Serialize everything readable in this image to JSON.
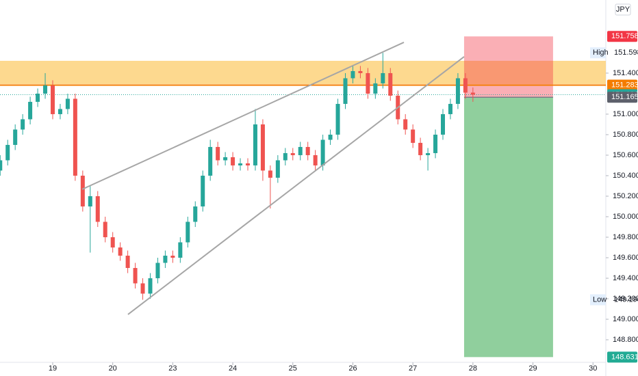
{
  "chart_data": {
    "type": "candlestick",
    "currency": "JPY",
    "up_color": "#26a69a",
    "down_color": "#ef5350",
    "xlim": [
      -0.878,
      9.214
    ],
    "ylim": [
      148.58,
      152.113
    ],
    "xticks": [
      {
        "value": 0,
        "label": "19"
      },
      {
        "value": 1,
        "label": "20"
      },
      {
        "value": 2,
        "label": "23"
      },
      {
        "value": 3,
        "label": "24"
      },
      {
        "value": 4,
        "label": "25"
      },
      {
        "value": 5,
        "label": "26"
      },
      {
        "value": 6,
        "label": "27"
      },
      {
        "value": 7,
        "label": "28"
      },
      {
        "value": 8,
        "label": "29"
      },
      {
        "value": 9,
        "label": "30"
      }
    ],
    "yticks": [
      {
        "value": 148.8,
        "label": "148.800"
      },
      {
        "value": 149,
        "label": "149.000"
      },
      {
        "value": 149.2,
        "label": "149.200"
      },
      {
        "value": 149.4,
        "label": "149.400"
      },
      {
        "value": 149.6,
        "label": "149.600"
      },
      {
        "value": 149.8,
        "label": "149.800"
      },
      {
        "value": 150,
        "label": "150.000"
      },
      {
        "value": 150.2,
        "label": "150.200"
      },
      {
        "value": 150.4,
        "label": "150.400"
      },
      {
        "value": 150.6,
        "label": "150.600"
      },
      {
        "value": 150.8,
        "label": "150.800"
      },
      {
        "value": 151,
        "label": "151.000"
      },
      {
        "value": 151.4,
        "label": "151.400"
      }
    ],
    "x": [
      -0.875,
      -0.75,
      -0.625,
      -0.5,
      -0.375,
      -0.25,
      -0.125,
      0,
      0.125,
      0.25,
      0.375,
      0.5,
      0.625,
      0.75,
      0.875,
      1,
      1.125,
      1.25,
      1.375,
      1.5,
      1.625,
      1.75,
      1.875,
      2,
      2.125,
      2.25,
      2.375,
      2.5,
      2.625,
      2.75,
      2.875,
      3,
      3.125,
      3.25,
      3.375,
      3.5,
      3.625,
      3.75,
      3.875,
      4,
      4.125,
      4.25,
      4.375,
      4.5,
      4.625,
      4.75,
      4.875,
      5,
      5.125,
      5.25,
      5.375,
      5.5,
      5.625,
      5.75,
      5.875,
      6,
      6.125,
      6.25,
      6.375,
      6.5,
      6.625,
      6.75,
      6.875,
      7
    ],
    "open": [
      150.45,
      150.55,
      150.7,
      150.85,
      150.95,
      151.12,
      151.2,
      151.28,
      151.0,
      151.05,
      151.15,
      150.4,
      150.1,
      150.2,
      149.95,
      149.8,
      149.7,
      149.62,
      149.5,
      149.35,
      149.25,
      149.4,
      149.55,
      149.62,
      149.6,
      149.75,
      149.95,
      150.1,
      150.4,
      150.68,
      150.55,
      150.58,
      150.5,
      150.52,
      150.5,
      150.9,
      150.45,
      150.38,
      150.55,
      150.62,
      150.6,
      150.68,
      150.6,
      150.5,
      150.75,
      150.8,
      151.1,
      151.35,
      151.42,
      151.4,
      151.2,
      151.3,
      151.4,
      151.18,
      150.95,
      150.85,
      150.72,
      150.6,
      150.62,
      150.8,
      151.0,
      151.1,
      151.35,
      151.21
    ],
    "high": [
      150.6,
      150.75,
      150.9,
      151.0,
      151.17,
      151.25,
      151.4,
      151.33,
      151.1,
      151.2,
      151.2,
      150.45,
      150.3,
      150.25,
      150.0,
      149.85,
      149.75,
      149.67,
      149.55,
      149.4,
      149.45,
      149.6,
      149.67,
      149.67,
      149.8,
      150.0,
      150.15,
      150.45,
      150.75,
      150.73,
      150.63,
      150.63,
      150.57,
      150.57,
      151.05,
      150.95,
      150.5,
      150.6,
      150.67,
      150.67,
      150.73,
      150.73,
      150.65,
      150.8,
      150.85,
      151.15,
      151.4,
      151.48,
      151.47,
      151.45,
      151.35,
      151.598,
      151.45,
      151.23,
      151.0,
      150.9,
      150.77,
      150.67,
      150.85,
      151.05,
      151.15,
      151.4,
      151.4,
      151.26
    ],
    "low": [
      150.4,
      150.5,
      150.65,
      150.8,
      150.9,
      151.07,
      151.15,
      150.95,
      150.95,
      151.0,
      150.35,
      150.05,
      149.65,
      149.9,
      149.75,
      149.65,
      149.57,
      149.45,
      149.3,
      149.19,
      149.2,
      149.35,
      149.5,
      149.55,
      149.55,
      149.7,
      149.9,
      150.05,
      150.35,
      150.5,
      150.5,
      150.45,
      150.45,
      150.45,
      150.45,
      150.35,
      150.08,
      150.33,
      150.5,
      150.55,
      150.55,
      150.55,
      150.45,
      150.45,
      150.7,
      150.75,
      151.05,
      151.3,
      151.35,
      151.15,
      151.15,
      151.25,
      151.13,
      150.9,
      150.8,
      150.67,
      150.55,
      150.45,
      150.57,
      150.75,
      150.95,
      151.05,
      151.15,
      151.12
    ],
    "close": [
      150.55,
      150.7,
      150.85,
      150.95,
      151.12,
      151.2,
      151.28,
      151.0,
      151.05,
      151.15,
      150.4,
      150.1,
      150.2,
      149.95,
      149.8,
      149.7,
      149.62,
      149.5,
      149.35,
      149.25,
      149.4,
      149.55,
      149.62,
      149.6,
      149.75,
      149.95,
      150.1,
      150.4,
      150.68,
      150.55,
      150.58,
      150.5,
      150.52,
      150.5,
      150.9,
      150.45,
      150.38,
      150.55,
      150.62,
      150.6,
      150.68,
      150.6,
      150.5,
      150.75,
      150.8,
      151.1,
      151.35,
      151.42,
      151.4,
      151.2,
      151.3,
      151.4,
      151.18,
      150.95,
      150.85,
      150.72,
      150.6,
      150.62,
      150.8,
      151.0,
      151.1,
      151.35,
      151.21,
      151.19
    ],
    "zone": {
      "ylim": [
        151.293,
        151.52
      ],
      "color": "#fdd27b"
    },
    "trend_lines": [
      {
        "x": [
          0.49,
          5.85
        ],
        "y": [
          150.267,
          151.7
        ],
        "color": "#a6a6a6"
      },
      {
        "x": [
          1.254,
          6.853
        ],
        "y": [
          149.047,
          151.56
        ],
        "color": "#a6a6a6"
      }
    ],
    "position": {
      "xlim": [
        6.853,
        8.335
      ],
      "stop": {
        "value": 151.758,
        "label": "151.758",
        "color": "#f23645"
      },
      "entry": {
        "value": 151.165,
        "label": "151.165",
        "color": "#5d606b"
      },
      "target": {
        "value": 148.631,
        "label": "148.631",
        "color": "#22ab94"
      }
    },
    "level_line": {
      "value": 151.283,
      "label": "151.283",
      "color": "#f57c00"
    },
    "last_price": {
      "value": 151.19,
      "label": "151.190",
      "color": "#26a69a"
    },
    "high_marker": {
      "name": "High",
      "value": 151.598,
      "label": "151.598"
    },
    "low_marker": {
      "name": "Low",
      "value": 149.19,
      "label": "149.190"
    }
  }
}
